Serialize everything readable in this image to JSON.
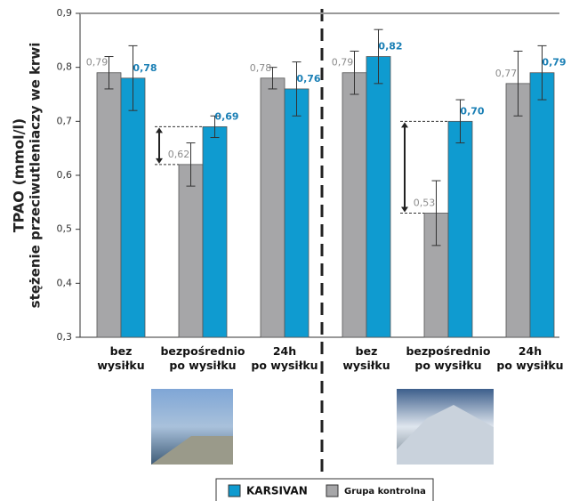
{
  "chart_data": {
    "type": "bar",
    "ylabel": [
      "TPAO (mmol/l)",
      "stężenie przeciwutleniaczy we krwi"
    ],
    "categories": [
      "bez\nwysiłku",
      "bezpośrednio\npo wysiłku",
      "24h\npo wysiłku",
      "bez\nwysiłku",
      "bezpośrednio\npo wysiłku",
      "24h\npo wysiłku"
    ],
    "series": [
      {
        "name": "Grupa kontrolna",
        "color": "#a6a6a8",
        "label_color": "#8c8c8c",
        "values": [
          0.79,
          0.62,
          0.78,
          0.79,
          0.53,
          0.77
        ],
        "value_labels": [
          "0,79",
          "0,62",
          "0,78",
          "0,79",
          "0,53",
          "0,77"
        ],
        "errors": [
          0.03,
          0.04,
          0.02,
          0.04,
          0.06,
          0.06
        ]
      },
      {
        "name": "KARSIVAN",
        "color": "#0f9bd0",
        "label_color": "#1a7fb5",
        "values": [
          0.78,
          0.69,
          0.76,
          0.82,
          0.7,
          0.79
        ],
        "value_labels": [
          "0,78",
          "0,69",
          "0,76",
          "0,82",
          "0,70",
          "0,79"
        ],
        "errors": [
          0.06,
          0.02,
          0.05,
          0.05,
          0.04,
          0.05
        ]
      }
    ],
    "ylim": [
      0.3,
      0.9
    ],
    "yticks": [
      {
        "value": 0.3,
        "label": "0,3"
      },
      {
        "value": 0.4,
        "label": "0,4"
      },
      {
        "value": 0.5,
        "label": "0,5"
      },
      {
        "value": 0.6,
        "label": "0,6"
      },
      {
        "value": 0.7,
        "label": "0,7"
      },
      {
        "value": 0.8,
        "label": "0,8"
      },
      {
        "value": 0.9,
        "label": "0,9"
      }
    ]
  }
}
